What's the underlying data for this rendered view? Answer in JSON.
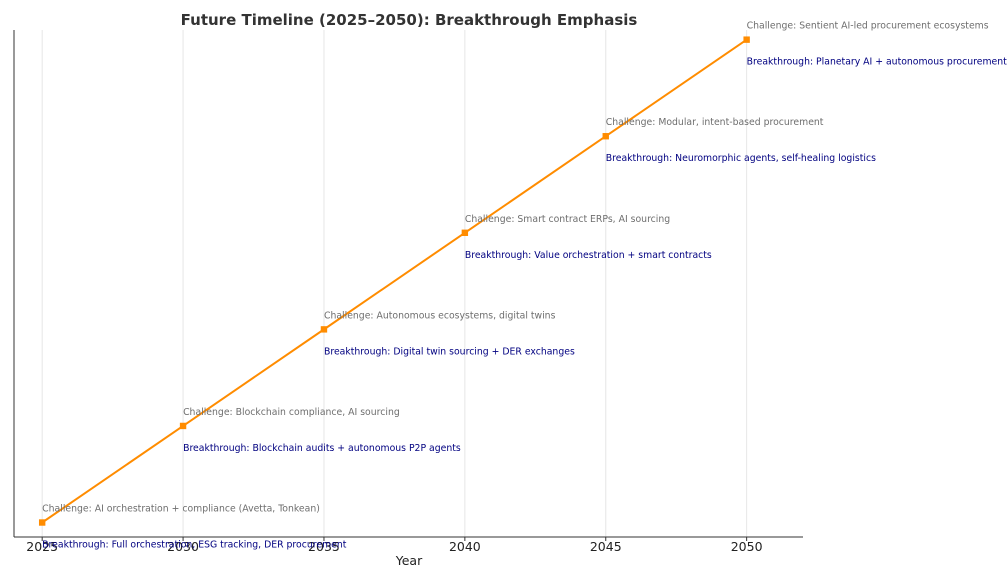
{
  "chart_data": {
    "type": "line",
    "title": "Future Timeline (2025–2050): Breakthrough Emphasis",
    "xlabel": "Year",
    "ylabel": "",
    "x": [
      2025,
      2030,
      2035,
      2040,
      2045,
      2050
    ],
    "xticks": [
      "2025",
      "2030",
      "2035",
      "2040",
      "2045",
      "2050"
    ],
    "y": [
      1,
      2,
      3,
      4,
      5,
      6
    ],
    "xlim": [
      2024,
      2052
    ],
    "ylim": [
      0.85,
      6.1
    ],
    "grid": "vertical",
    "line_color": "#ff8c00",
    "marker": "square",
    "challenge_color": "#6e6e6e",
    "breakthrough_color": "#000080",
    "annotations": [
      {
        "x": 2025,
        "challenge": "Challenge: AI orchestration + compliance (Avetta, Tonkean)",
        "breakthrough": "Breakthrough: Full orchestration, ESG tracking, DER procurement"
      },
      {
        "x": 2030,
        "challenge": "Challenge: Blockchain compliance, AI sourcing",
        "breakthrough": "Breakthrough: Blockchain audits + autonomous P2P agents"
      },
      {
        "x": 2035,
        "challenge": "Challenge: Autonomous ecosystems, digital twins",
        "breakthrough": "Breakthrough: Digital twin sourcing + DER exchanges"
      },
      {
        "x": 2040,
        "challenge": "Challenge: Smart contract ERPs, AI sourcing",
        "breakthrough": "Breakthrough: Value orchestration + smart contracts"
      },
      {
        "x": 2045,
        "challenge": "Challenge: Modular, intent-based procurement",
        "breakthrough": "Breakthrough: Neuromorphic agents, self-healing logistics"
      },
      {
        "x": 2050,
        "challenge": "Challenge: Sentient AI-led procurement ecosystems",
        "breakthrough": "Breakthrough: Planetary AI + autonomous procurement"
      }
    ]
  }
}
